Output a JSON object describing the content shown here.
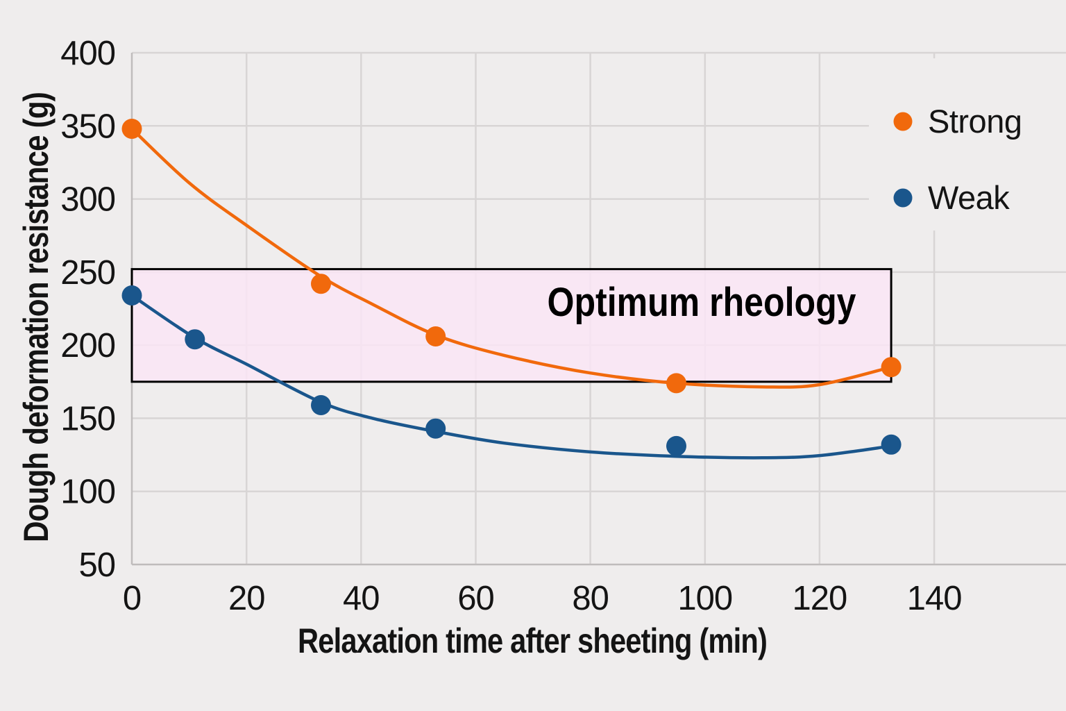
{
  "figure": {
    "background_color": "#EFEDED",
    "grid_color": "#D8D5D5",
    "axis_color": "#BFBCBC",
    "text_color": "#141414"
  },
  "chart_data": {
    "type": "scatter",
    "title": "",
    "xlabel": "Relaxation time after sheeting (min)",
    "ylabel": "Dough deformation resistance (g)",
    "xlim": [
      0,
      163
    ],
    "ylim": [
      50,
      400
    ],
    "xticks": [
      0,
      20,
      40,
      60,
      80,
      100,
      120,
      140
    ],
    "yticks": [
      50,
      100,
      150,
      200,
      250,
      300,
      350,
      400
    ],
    "grid": true,
    "legend_position": "top-right",
    "series": [
      {
        "name": "Strong",
        "color": "#F1690C",
        "x": [
          0,
          33,
          53,
          95,
          132.5
        ],
        "values": [
          348,
          242,
          206,
          174,
          185
        ],
        "trend_curve": [
          [
            0,
            348
          ],
          [
            10,
            311
          ],
          [
            20,
            282
          ],
          [
            33,
            247
          ],
          [
            42,
            228
          ],
          [
            53,
            207
          ],
          [
            65,
            193
          ],
          [
            80,
            181
          ],
          [
            95,
            174
          ],
          [
            110,
            171.5
          ],
          [
            120,
            173
          ],
          [
            132.5,
            185
          ]
        ]
      },
      {
        "name": "Weak",
        "color": "#1A568C",
        "x": [
          0,
          11,
          33,
          53,
          95,
          132.5
        ],
        "values": [
          234,
          204,
          159,
          143,
          131,
          132
        ],
        "trend_curve": [
          [
            0,
            234
          ],
          [
            11,
            205
          ],
          [
            20,
            187
          ],
          [
            33,
            161
          ],
          [
            42,
            150
          ],
          [
            53,
            141
          ],
          [
            65,
            133
          ],
          [
            80,
            127
          ],
          [
            95,
            124
          ],
          [
            110,
            123
          ],
          [
            120,
            124.5
          ],
          [
            132.5,
            131
          ]
        ]
      }
    ],
    "annotation_box": {
      "label": "Optimum rheology",
      "x_range": [
        0,
        132.5
      ],
      "y_range": [
        175,
        252
      ],
      "fill": "rgba(250,229,244,0.85)",
      "border_color": "#000000",
      "label_color": "#000000"
    }
  }
}
